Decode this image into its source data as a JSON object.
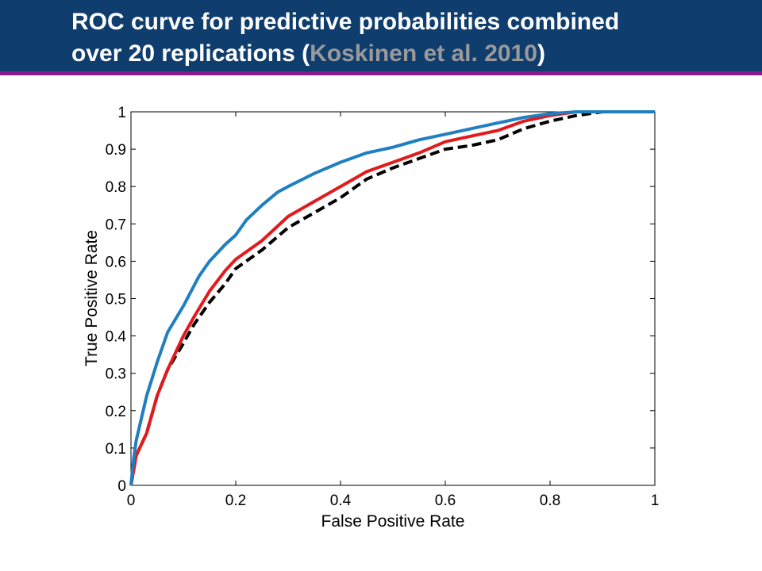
{
  "header": {
    "title_line1": "ROC curve for predictive probabilities combined",
    "title_line2_pre": "over 20 replications (",
    "title_citation": "Koskinen et al. 2010",
    "title_line2_post": ")"
  },
  "colors": {
    "header_bg": "#0f3d6e",
    "header_rule": "#8a1a8c",
    "citation": "#9a9a9a",
    "series_blue": "#1f7fc0",
    "series_red": "#e31a1c",
    "series_black": "#000000"
  },
  "chart_data": {
    "type": "line",
    "title": "",
    "xlabel": "False Positive Rate",
    "ylabel": "True Positive Rate",
    "xlim": [
      0,
      1
    ],
    "ylim": [
      0,
      1
    ],
    "xticks": [
      0,
      0.2,
      0.4,
      0.6,
      0.8,
      1
    ],
    "xtick_labels": [
      "0",
      "0.2",
      "0.4",
      "0.6",
      "0.8",
      "1"
    ],
    "yticks": [
      0,
      0.1,
      0.2,
      0.3,
      0.4,
      0.5,
      0.6,
      0.7,
      0.8,
      0.9,
      1
    ],
    "ytick_labels": [
      "0",
      "0.1",
      "0.2",
      "0.3",
      "0.4",
      "0.5",
      "0.6",
      "0.7",
      "0.8",
      "0.9",
      "1"
    ],
    "grid": false,
    "legend": "none",
    "series": [
      {
        "color": "#1f7fc0",
        "style": "solid",
        "x": [
          0,
          0.005,
          0.01,
          0.02,
          0.03,
          0.05,
          0.07,
          0.1,
          0.13,
          0.15,
          0.18,
          0.2,
          0.22,
          0.25,
          0.28,
          0.3,
          0.35,
          0.4,
          0.45,
          0.5,
          0.55,
          0.6,
          0.65,
          0.7,
          0.75,
          0.8,
          0.85,
          0.9,
          1.0
        ],
        "y": [
          0,
          0.07,
          0.12,
          0.18,
          0.24,
          0.33,
          0.41,
          0.48,
          0.56,
          0.6,
          0.645,
          0.67,
          0.71,
          0.75,
          0.785,
          0.8,
          0.835,
          0.865,
          0.89,
          0.905,
          0.925,
          0.94,
          0.955,
          0.97,
          0.985,
          0.995,
          1.0,
          1.0,
          1.0
        ]
      },
      {
        "color": "#e31a1c",
        "style": "solid",
        "x": [
          0,
          0.005,
          0.01,
          0.03,
          0.05,
          0.07,
          0.1,
          0.12,
          0.15,
          0.18,
          0.2,
          0.25,
          0.3,
          0.35,
          0.4,
          0.45,
          0.5,
          0.55,
          0.6,
          0.65,
          0.7,
          0.75,
          0.8,
          0.85,
          0.9,
          1.0
        ],
        "y": [
          0,
          0.04,
          0.08,
          0.14,
          0.24,
          0.31,
          0.4,
          0.45,
          0.52,
          0.575,
          0.605,
          0.655,
          0.72,
          0.76,
          0.8,
          0.84,
          0.865,
          0.89,
          0.92,
          0.935,
          0.95,
          0.975,
          0.99,
          1.0,
          1.0,
          1.0
        ]
      },
      {
        "color": "#000000",
        "style": "dashed",
        "x": [
          0,
          0.005,
          0.01,
          0.03,
          0.05,
          0.07,
          0.1,
          0.12,
          0.15,
          0.18,
          0.2,
          0.25,
          0.3,
          0.35,
          0.4,
          0.45,
          0.5,
          0.55,
          0.6,
          0.65,
          0.7,
          0.75,
          0.8,
          0.85,
          0.9,
          0.95,
          1.0
        ],
        "y": [
          0,
          0.04,
          0.08,
          0.14,
          0.24,
          0.31,
          0.38,
          0.43,
          0.49,
          0.54,
          0.58,
          0.63,
          0.69,
          0.73,
          0.77,
          0.82,
          0.85,
          0.875,
          0.9,
          0.91,
          0.925,
          0.955,
          0.975,
          0.99,
          1.0,
          1.0,
          1.0
        ]
      }
    ]
  }
}
